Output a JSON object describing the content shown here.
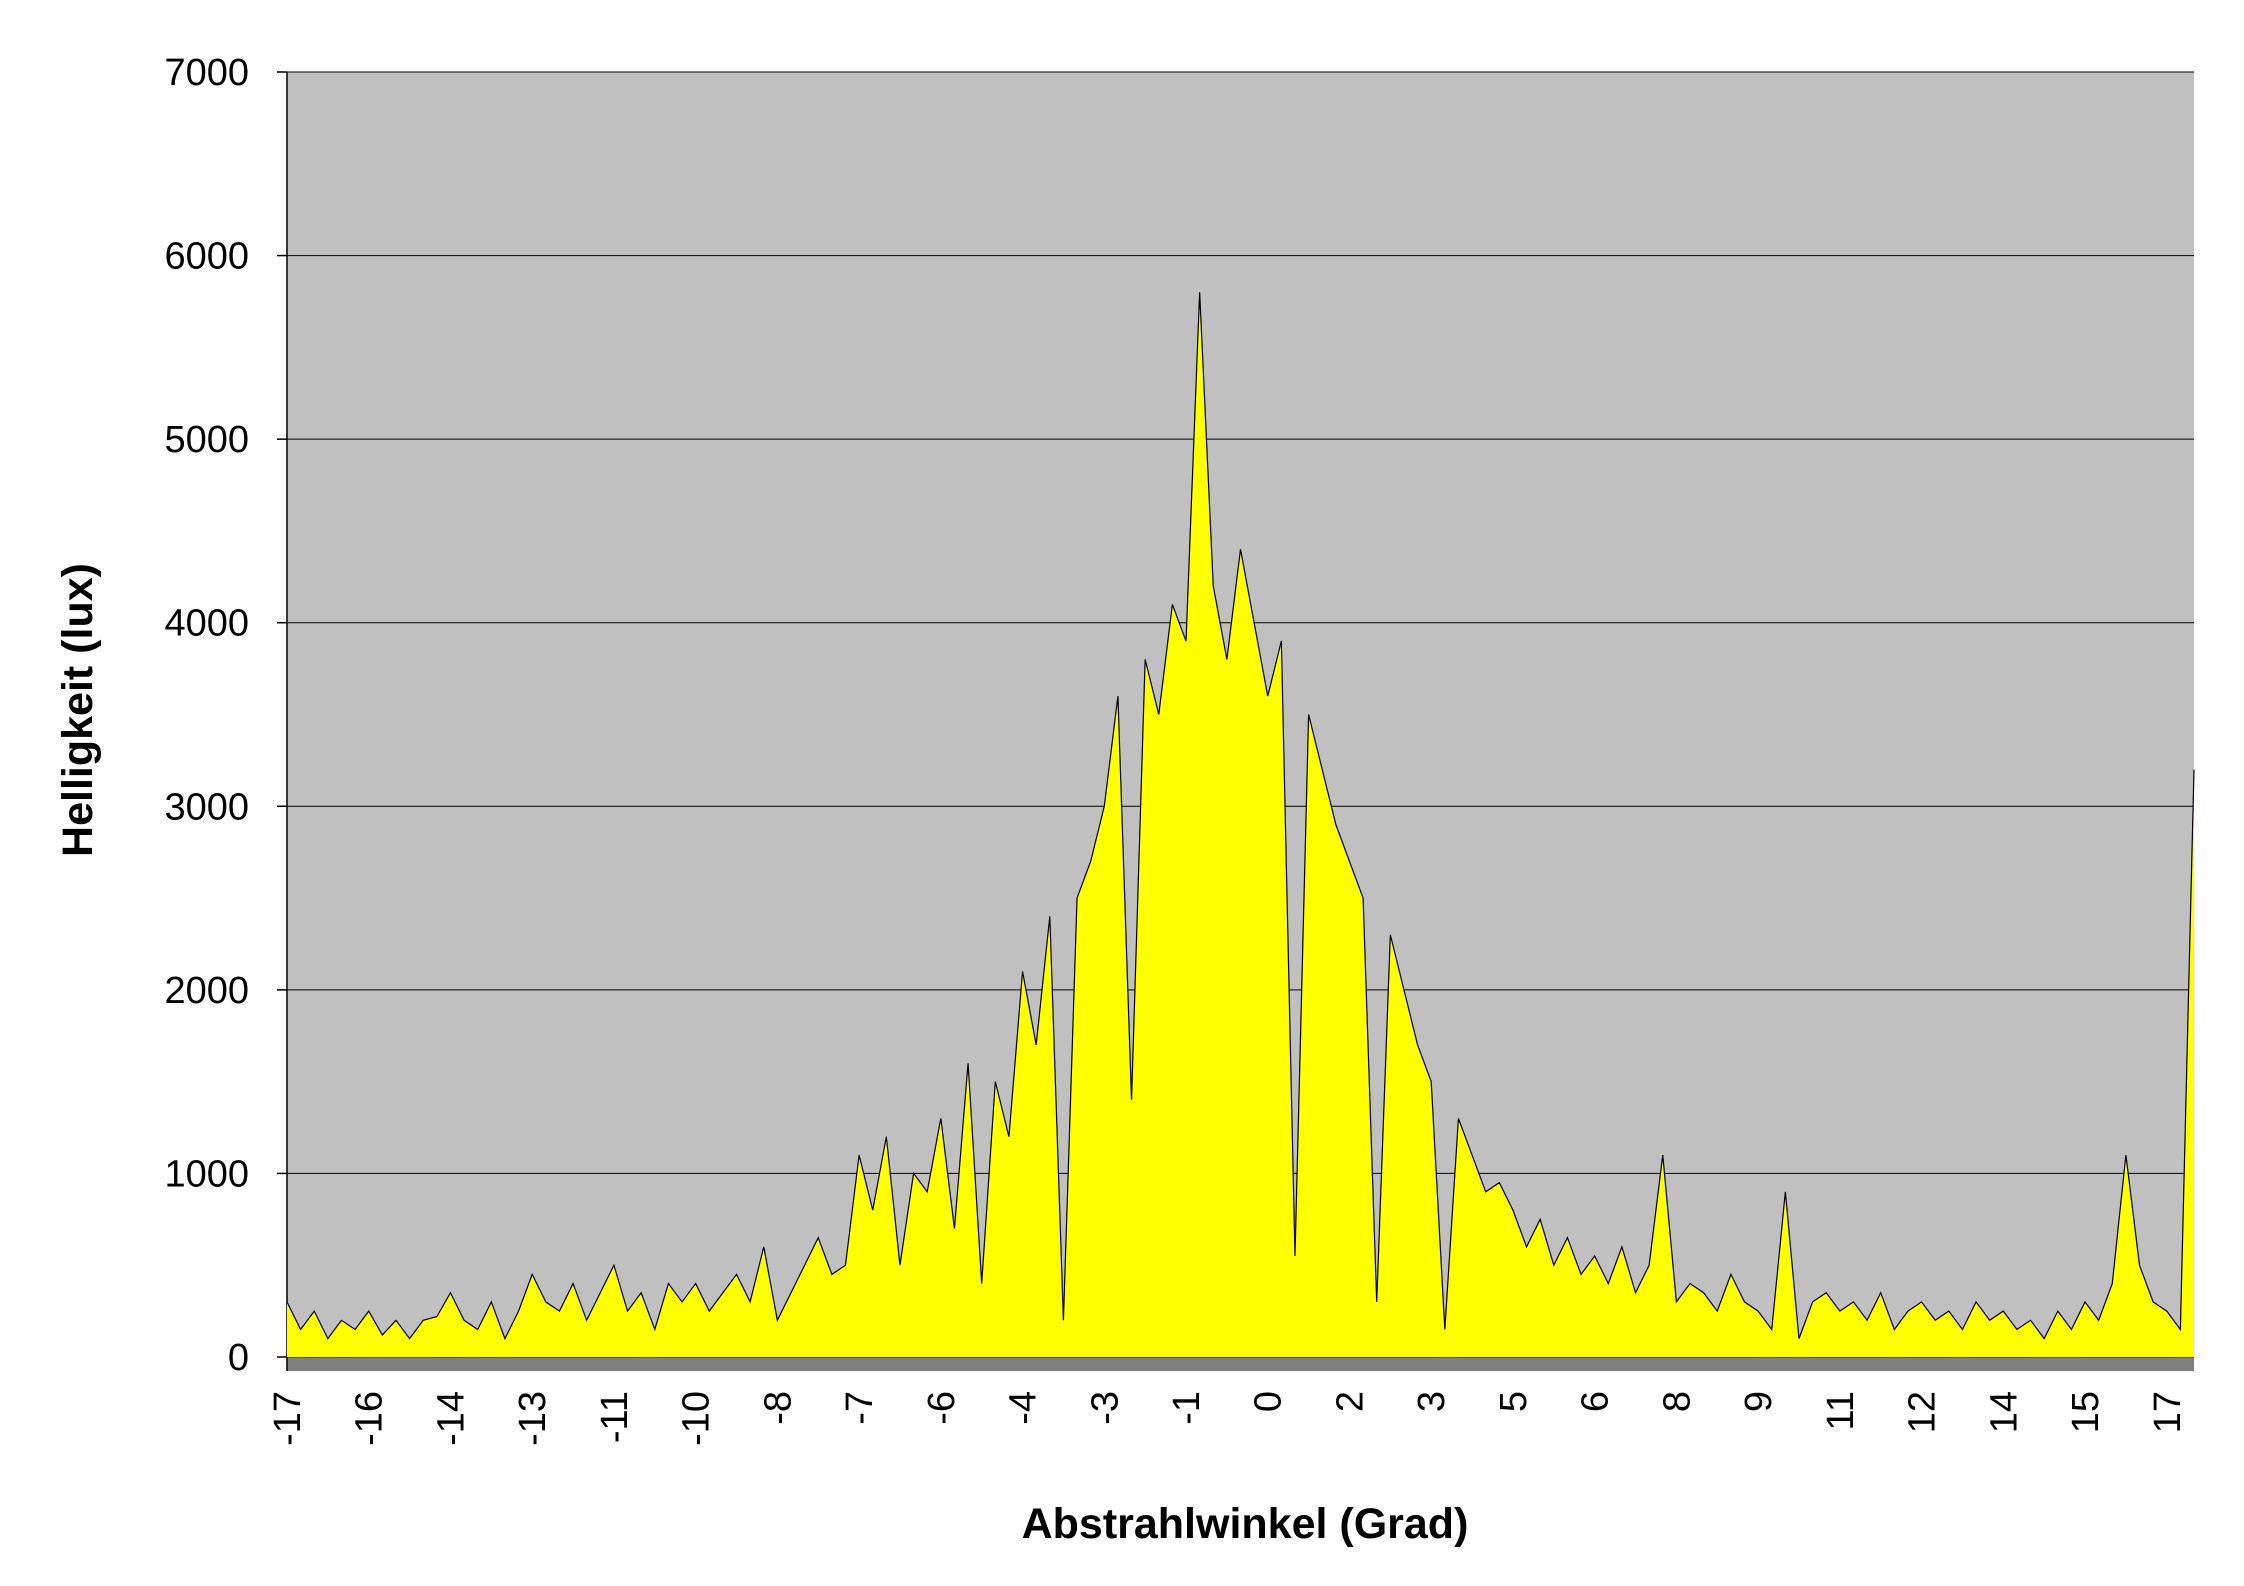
{
  "chart_data": {
    "type": "area",
    "x_label": "Abstrahlwinkel (Grad)",
    "y_label": "Helligkeit (lux)",
    "categories": [
      "-17",
      null,
      null,
      null,
      null,
      null,
      "-16",
      null,
      null,
      null,
      null,
      null,
      "-14",
      null,
      null,
      null,
      null,
      null,
      "-13",
      null,
      null,
      null,
      null,
      null,
      "-11",
      null,
      null,
      null,
      null,
      null,
      "-10",
      null,
      null,
      null,
      null,
      null,
      "-8",
      null,
      null,
      null,
      null,
      null,
      "-7",
      null,
      null,
      null,
      null,
      null,
      "-6",
      null,
      null,
      null,
      null,
      null,
      "-4",
      null,
      null,
      null,
      null,
      null,
      "-3",
      null,
      null,
      null,
      null,
      null,
      "-1",
      null,
      null,
      null,
      null,
      null,
      "0",
      null,
      null,
      null,
      null,
      null,
      "2",
      null,
      null,
      null,
      null,
      null,
      "3",
      null,
      null,
      null,
      null,
      null,
      "5",
      null,
      null,
      null,
      null,
      null,
      "6",
      null,
      null,
      null,
      null,
      null,
      "8",
      null,
      null,
      null,
      null,
      null,
      "9",
      null,
      null,
      null,
      null,
      null,
      "11",
      null,
      null,
      null,
      null,
      null,
      "12",
      null,
      null,
      null,
      null,
      null,
      "14",
      null,
      null,
      null,
      null,
      null,
      "15",
      null,
      null,
      null,
      null,
      null,
      "17",
      null,
      null
    ],
    "values": [
      300,
      150,
      250,
      100,
      200,
      150,
      250,
      120,
      200,
      100,
      200,
      220,
      350,
      200,
      150,
      300,
      100,
      250,
      450,
      300,
      250,
      400,
      200,
      350,
      500,
      250,
      350,
      150,
      400,
      300,
      400,
      250,
      350,
      450,
      300,
      600,
      200,
      350,
      500,
      650,
      450,
      500,
      1100,
      800,
      1200,
      500,
      1000,
      900,
      1300,
      700,
      1600,
      400,
      1500,
      1200,
      2100,
      1700,
      2400,
      200,
      2500,
      2700,
      3000,
      3600,
      1400,
      3800,
      3500,
      4100,
      3900,
      5800,
      4200,
      3800,
      4400,
      4000,
      3600,
      3900,
      550,
      3500,
      3200,
      2900,
      2700,
      2500,
      300,
      2300,
      2000,
      1700,
      1500,
      150,
      1300,
      1100,
      900,
      950,
      800,
      600,
      750,
      500,
      650,
      450,
      550,
      400,
      600,
      350,
      500,
      1100,
      300,
      400,
      350,
      250,
      450,
      300,
      250,
      150,
      900,
      100,
      300,
      350,
      250,
      300,
      200,
      350,
      150,
      250,
      300,
      200,
      250,
      150,
      300,
      200,
      250,
      150,
      200,
      100,
      250,
      150,
      300,
      200,
      400,
      1100,
      500,
      300,
      250,
      150,
      3200
    ],
    "color": "#ffff00",
    "line_color": "#000000",
    "plot_background": "#c0c0c0",
    "floor_color": "#808080",
    "ylim": [
      0,
      7000
    ],
    "yticks": [
      0,
      1000,
      2000,
      3000,
      4000,
      5000,
      6000,
      7000
    ],
    "grid": true
  }
}
